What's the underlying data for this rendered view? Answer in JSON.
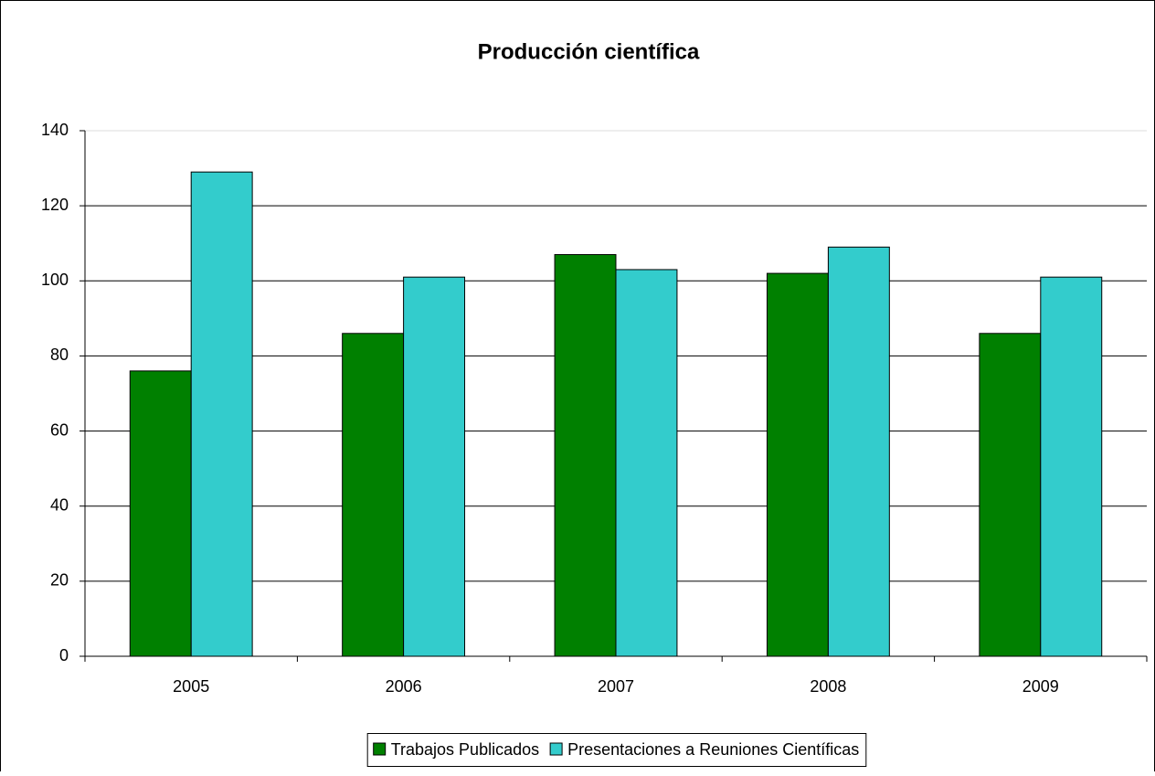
{
  "chart_data": {
    "type": "bar",
    "title": "Producción científica",
    "categories": [
      "2005",
      "2006",
      "2007",
      "2008",
      "2009"
    ],
    "series": [
      {
        "name": "Trabajos Publicados",
        "color": "#008000",
        "values": [
          76,
          86,
          107,
          102,
          86
        ]
      },
      {
        "name": "Presentaciones a Reuniones Científicas",
        "color": "#33CCCC",
        "values": [
          129,
          101,
          103,
          109,
          101
        ]
      }
    ],
    "ylim": [
      0,
      140
    ],
    "yticks": [
      0,
      20,
      40,
      60,
      80,
      100,
      120,
      140
    ],
    "grid": true,
    "legend": "bottom"
  }
}
